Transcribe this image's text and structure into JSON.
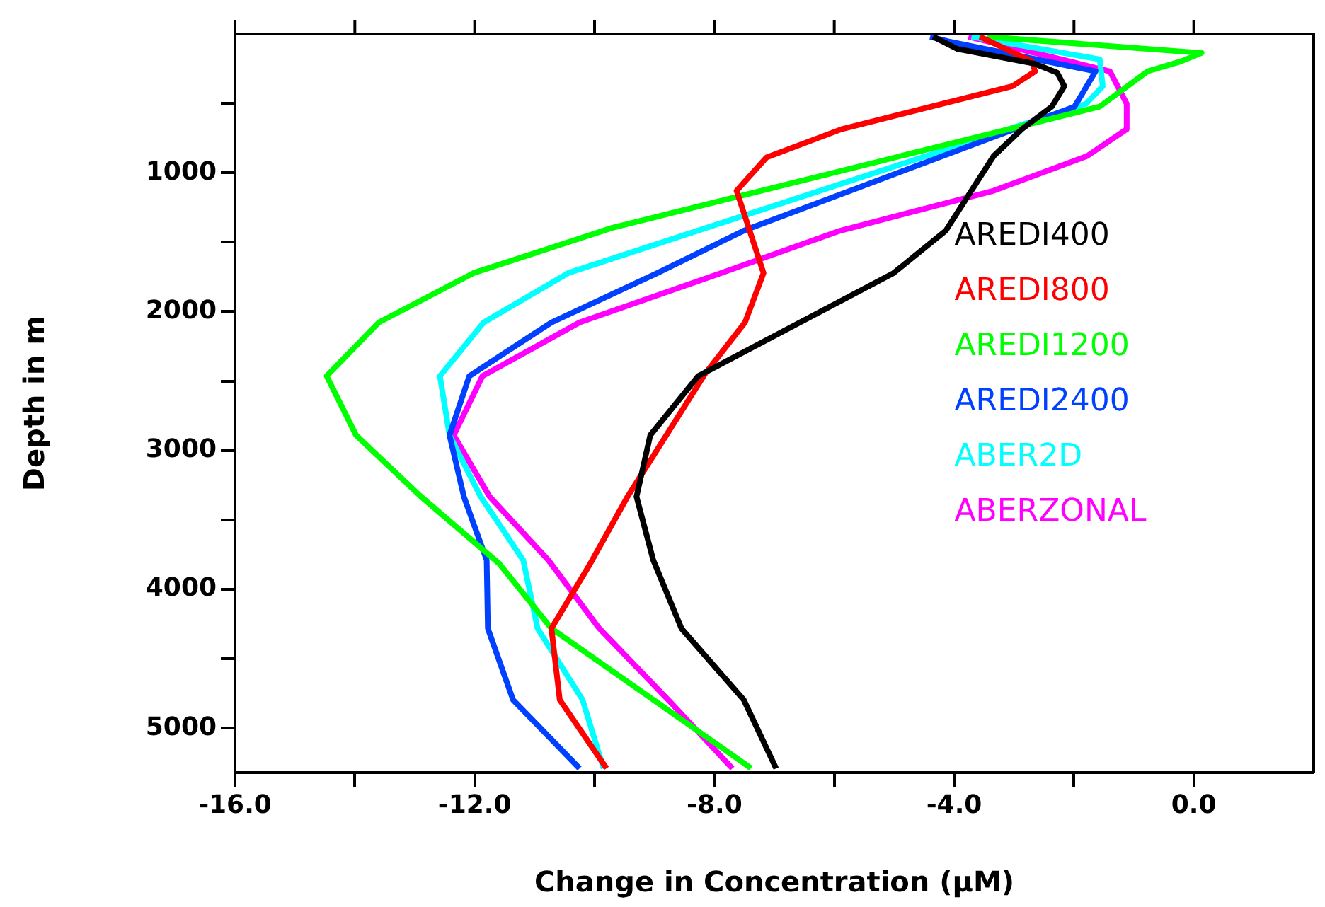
{
  "chart_data": {
    "type": "line",
    "xlabel": "Change in Concentration (μM)",
    "ylabel": "Depth in m",
    "legend": "right",
    "marker": "none",
    "grid": false,
    "xlim": [
      -16,
      2
    ],
    "xticks": [
      {
        "value": -16,
        "label": "-16.0"
      },
      {
        "value": -14,
        "label": null
      },
      {
        "value": -12,
        "label": "-12.0"
      },
      {
        "value": -10,
        "label": null
      },
      {
        "value": -8,
        "label": "-8.0"
      },
      {
        "value": -6,
        "label": null
      },
      {
        "value": -4,
        "label": "-4.0"
      },
      {
        "value": -2,
        "label": null
      },
      {
        "value": 0,
        "label": "0.0"
      }
    ],
    "ylim": [
      5320,
      0
    ],
    "yticks": [
      {
        "value": 500,
        "label": null
      },
      1000,
      {
        "value": 1500,
        "label": null
      },
      2000,
      {
        "value": 2500,
        "label": null
      },
      3000,
      {
        "value": 3500,
        "label": null
      },
      4000,
      {
        "value": 4500,
        "label": null
      },
      5000
    ],
    "series": [
      {
        "name": "AREDI400",
        "color": "#000000",
        "x": [
          -4.35,
          -3.95,
          -2.65,
          -2.28,
          -2.16,
          -2.37,
          -2.87,
          -3.34,
          -4.14,
          -5.01,
          -8.27,
          -9.07,
          -9.3,
          -9.02,
          -8.55,
          -7.51,
          -6.97
        ],
        "values": [
          20,
          107,
          215,
          279,
          377,
          523,
          686,
          879,
          1417,
          1722,
          2464,
          2890,
          3333,
          3790,
          4282,
          4796,
          5290
        ]
      },
      {
        "name": "AREDI800",
        "color": "#ff0000",
        "x": [
          -3.57,
          -2.7,
          -2.65,
          -3.03,
          -5.88,
          -7.13,
          -7.63,
          -7.18,
          -7.49,
          -8.15,
          -9.45,
          -10.08,
          -10.72,
          -10.58,
          -9.8
        ],
        "values": [
          20,
          198,
          269,
          377,
          686,
          889,
          1129,
          1722,
          2078,
          2444,
          3333,
          3821,
          4282,
          4796,
          5290
        ]
      },
      {
        "name": "AREDI1200",
        "color": "#00ff00",
        "x": [
          -3.45,
          0.13,
          -0.22,
          -0.77,
          -1.57,
          -9.71,
          -12.02,
          -13.6,
          -14.47,
          -13.98,
          -12.91,
          -11.59,
          -10.72,
          -7.39
        ],
        "values": [
          20,
          137,
          198,
          269,
          523,
          1397,
          1722,
          2078,
          2464,
          2890,
          3327,
          3815,
          4282,
          5288
        ]
      },
      {
        "name": "AREDI2400",
        "color": "#0040ff",
        "x": [
          -4.4,
          -4.09,
          -1.64,
          -1.99,
          -7.51,
          -8.95,
          -10.72,
          -12.09,
          -12.42,
          -12.18,
          -11.8,
          -11.78,
          -11.36,
          -10.25
        ],
        "values": [
          20,
          54,
          269,
          523,
          1417,
          1722,
          2078,
          2464,
          2890,
          3333,
          3790,
          4282,
          4796,
          5290
        ]
      },
      {
        "name": "ABER2D",
        "color": "#00ffff",
        "x": [
          -3.71,
          -1.57,
          -1.52,
          -1.8,
          -10.44,
          -11.85,
          -12.58,
          -12.42,
          -11.9,
          -11.19,
          -10.95,
          -10.2,
          -9.85
        ],
        "values": [
          20,
          183,
          377,
          503,
          1722,
          2078,
          2464,
          2890,
          3333,
          3790,
          4282,
          4796,
          5290
        ]
      },
      {
        "name": "ABERZONAL",
        "color": "#ff00ff",
        "x": [
          -3.76,
          -1.4,
          -1.12,
          -1.12,
          -1.78,
          -3.34,
          -5.9,
          -7.89,
          -10.25,
          -11.87,
          -12.35,
          -11.75,
          -10.77,
          -9.92,
          -8.77,
          -7.7
        ],
        "values": [
          20,
          269,
          503,
          686,
          879,
          1129,
          1417,
          1722,
          2078,
          2464,
          2890,
          3333,
          3790,
          4282,
          4796,
          5290
        ]
      }
    ]
  }
}
